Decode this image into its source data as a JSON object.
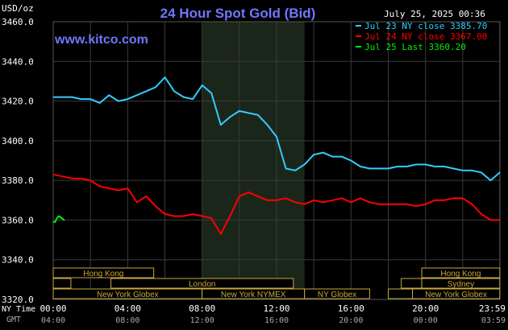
{
  "header": {
    "title": "24 Hour Spot Gold (Bid)",
    "timestamp": "July 25, 2025 00:36",
    "site": "www.kitco.com",
    "unit": "USD/oz"
  },
  "axes": {
    "y_ticks": [
      "3460.0",
      "3440.0",
      "3420.0",
      "3400.0",
      "3380.0",
      "3360.0",
      "3340.0",
      "3320.0"
    ],
    "ny_label": "NY Time",
    "gmt_label": "GMT",
    "ny_times": [
      "00:00",
      "04:00",
      "08:00",
      "12:00",
      "16:00",
      "20:00",
      "23:59"
    ],
    "gmt_times": [
      "04:00",
      "08:00",
      "12:00",
      "16:00",
      "20:00",
      "00:00",
      "03:59"
    ]
  },
  "sessions": [
    {
      "label": "Hong Kong",
      "row": 0,
      "start": 0.0,
      "end": 5.4
    },
    {
      "label": "",
      "row": 1,
      "start": 0.0,
      "end": 0.95
    },
    {
      "label": "London",
      "row": 1,
      "start": 3.1,
      "end": 12.9
    },
    {
      "label": "New York Globex",
      "row": 2,
      "start": 0.0,
      "end": 8.0
    },
    {
      "label": "New York NYMEX",
      "row": 2,
      "start": 8.0,
      "end": 13.5
    },
    {
      "label": "NY Globex",
      "row": 2,
      "start": 13.5,
      "end": 17.0
    },
    {
      "label": "Hong Kong",
      "row": 0,
      "start": 19.8,
      "end": 23.99
    },
    {
      "label": "",
      "row": 1,
      "start": 18.7,
      "end": 19.8
    },
    {
      "label": "Sydney",
      "row": 1,
      "start": 19.8,
      "end": 23.99
    },
    {
      "label": "",
      "row": 2,
      "start": 18.0,
      "end": 19.3
    },
    {
      "label": "New York Globex",
      "row": 2,
      "start": 19.3,
      "end": 23.99
    }
  ],
  "colors": {
    "jul23": "#33ccff",
    "jul24": "#ff0000",
    "jul25": "#00ee00",
    "session_box": "#c8a83c",
    "grid": "#3a3a3a",
    "axis_text": "#ffffff",
    "title": "#6f77ff",
    "highlight": "#1c2a1c"
  },
  "chart_data": {
    "type": "line",
    "title": "24 Hour Spot Gold (Bid)",
    "ylabel": "USD/oz",
    "ylim": [
      3320,
      3460
    ],
    "xlim": [
      0,
      24
    ],
    "x_unit": "hours since 00:00 NY time",
    "grid": true,
    "legend_position": "top-right",
    "series": [
      {
        "name": "Jul 23 NY close 3385.70",
        "color": "#33ccff",
        "x": [
          0,
          0.5,
          1,
          1.5,
          2,
          2.5,
          3,
          3.5,
          4,
          4.5,
          5,
          5.5,
          6,
          6.5,
          7,
          7.5,
          8,
          8.5,
          9,
          9.5,
          10,
          10.5,
          11,
          11.5,
          12,
          12.5,
          13,
          13.5,
          14,
          14.5,
          15,
          15.5,
          16,
          16.5,
          17,
          17.5,
          18,
          18.5,
          19,
          19.5,
          20,
          20.5,
          21,
          21.5,
          22,
          22.5,
          23,
          23.5,
          23.99
        ],
        "y": [
          3422,
          3422,
          3422,
          3421,
          3421,
          3419,
          3423,
          3420,
          3421,
          3423,
          3425,
          3427,
          3432,
          3425,
          3422,
          3421,
          3428,
          3424,
          3408,
          3412,
          3415,
          3414,
          3413,
          3408,
          3402,
          3386,
          3385,
          3388,
          3393,
          3394,
          3392,
          3392,
          3390,
          3387,
          3386,
          3386,
          3386,
          3387,
          3387,
          3388,
          3388,
          3387,
          3387,
          3386,
          3385,
          3385,
          3384,
          3380,
          3384
        ]
      },
      {
        "name": "Jul 24 NY close 3367.00",
        "color": "#ff0000",
        "x": [
          0,
          0.5,
          1,
          1.5,
          2,
          2.5,
          3,
          3.5,
          4,
          4.5,
          5,
          5.5,
          6,
          6.5,
          7,
          7.5,
          8,
          8.5,
          9,
          9.5,
          10,
          10.5,
          11,
          11.5,
          12,
          12.5,
          13,
          13.5,
          14,
          14.5,
          15,
          15.5,
          16,
          16.5,
          17,
          17.5,
          18,
          18.5,
          19,
          19.5,
          20,
          20.5,
          21,
          21.5,
          22,
          22.5,
          23,
          23.5,
          23.99
        ],
        "y": [
          3383,
          3382,
          3381,
          3381,
          3380,
          3377,
          3376,
          3375,
          3376,
          3369,
          3372,
          3367,
          3363,
          3362,
          3362,
          3363,
          3362,
          3361,
          3353,
          3362,
          3372,
          3374,
          3372,
          3370,
          3370,
          3371,
          3369,
          3368,
          3370,
          3369,
          3370,
          3371,
          3369,
          3371,
          3369,
          3368,
          3368,
          3368,
          3368,
          3367,
          3368,
          3370,
          3370,
          3371,
          3371,
          3368,
          3363,
          3360,
          3360
        ]
      },
      {
        "name": "Jul 25 Last 3360.20",
        "color": "#00ee00",
        "x": [
          0,
          0.1,
          0.2,
          0.3,
          0.45,
          0.6
        ],
        "y": [
          3359,
          3359,
          3361,
          3362,
          3361,
          3360
        ]
      }
    ]
  }
}
